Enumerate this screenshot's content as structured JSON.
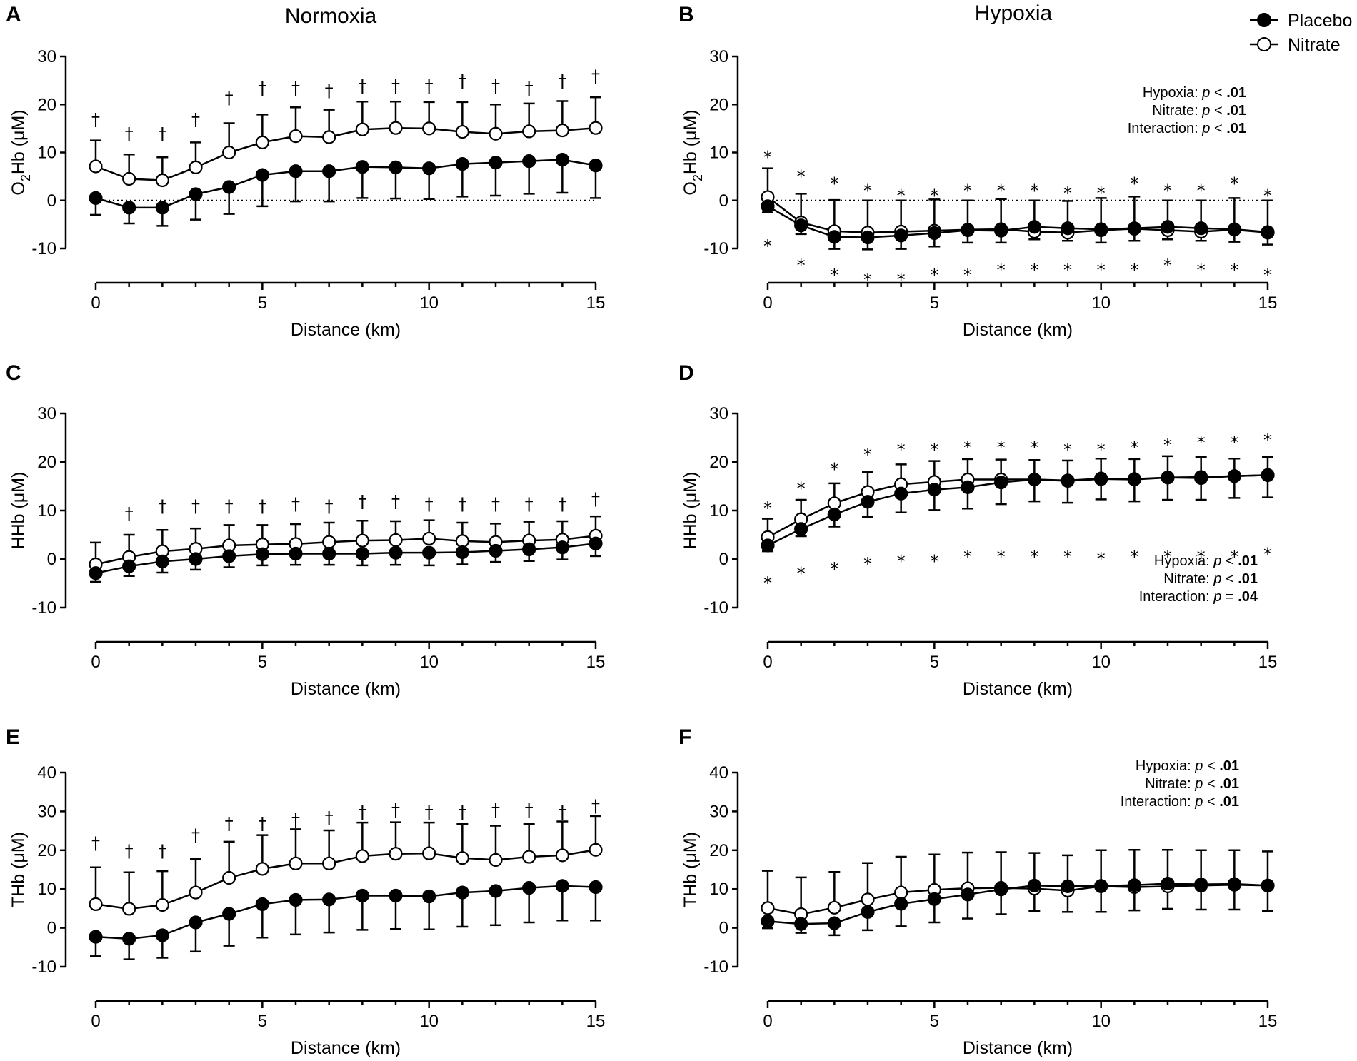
{
  "column_titles": {
    "left": "Normoxia",
    "right": "Hypoxia"
  },
  "legend": {
    "entries": [
      {
        "label": "Placebo",
        "marker": "filled-circle"
      },
      {
        "label": "Nitrate",
        "marker": "open-circle"
      }
    ]
  },
  "colors": {
    "ink": "#000000",
    "background": "#ffffff"
  },
  "chart_data": [
    {
      "id": "A",
      "panel_label": "A",
      "type": "line",
      "xlabel": "Distance (km)",
      "ylabel_main": "O",
      "ylabel_sub": "2",
      "ylabel_rest": "Hb (μM)",
      "xlim": [
        0,
        15
      ],
      "ylim": [
        -10,
        30
      ],
      "xticks": [
        0,
        5,
        10,
        15
      ],
      "yticks": [
        -10,
        0,
        10,
        20,
        30
      ],
      "zero_line": true,
      "x": [
        0,
        1,
        2,
        3,
        4,
        5,
        6,
        7,
        8,
        9,
        10,
        11,
        12,
        13,
        14,
        15
      ],
      "series": [
        {
          "name": "Placebo",
          "filled": true,
          "values": [
            0.5,
            -1.5,
            -1.5,
            1.3,
            2.8,
            5.3,
            6.1,
            6.1,
            7.0,
            6.9,
            6.7,
            7.6,
            7.9,
            8.2,
            8.5,
            7.3
          ],
          "error": [
            3.5,
            3.3,
            3.8,
            5.3,
            5.6,
            6.5,
            6.3,
            6.3,
            6.5,
            6.5,
            6.4,
            6.8,
            6.9,
            6.8,
            6.9,
            6.8
          ]
        },
        {
          "name": "Nitrate",
          "filled": false,
          "values": [
            7.1,
            4.5,
            4.2,
            6.9,
            10.0,
            12.1,
            13.4,
            13.2,
            14.8,
            15.1,
            15.0,
            14.3,
            13.9,
            14.4,
            14.6,
            15.1
          ],
          "error": [
            5.4,
            5.1,
            4.8,
            5.2,
            6.1,
            5.8,
            6.0,
            5.7,
            5.8,
            5.5,
            5.5,
            6.2,
            6.1,
            5.8,
            6.1,
            6.4
          ]
        }
      ],
      "annotations": [
        {
          "symbol": "†",
          "x": [
            0,
            1,
            2,
            3,
            4,
            5,
            6,
            7,
            8,
            9,
            10,
            11,
            12,
            13,
            14,
            15
          ],
          "y": [
            17,
            14,
            14,
            17,
            21.5,
            23.5,
            23.5,
            23,
            24,
            24,
            24,
            25,
            24,
            23.5,
            25,
            26
          ]
        }
      ],
      "stats": []
    },
    {
      "id": "B",
      "panel_label": "B",
      "type": "line",
      "xlabel": "Distance (km)",
      "ylabel_main": "O",
      "ylabel_sub": "2",
      "ylabel_rest": "Hb (μM)",
      "xlim": [
        0,
        15
      ],
      "ylim": [
        -10,
        30
      ],
      "xticks": [
        0,
        5,
        10,
        15
      ],
      "yticks": [
        -10,
        0,
        10,
        20,
        30
      ],
      "zero_line": true,
      "x": [
        0,
        1,
        2,
        3,
        4,
        5,
        6,
        7,
        8,
        9,
        10,
        11,
        12,
        13,
        14,
        15
      ],
      "series": [
        {
          "name": "Placebo",
          "filled": true,
          "values": [
            -1.2,
            -5.2,
            -7.6,
            -7.7,
            -7.3,
            -6.8,
            -6.2,
            -6.3,
            -5.5,
            -5.8,
            -6.0,
            -5.8,
            -5.5,
            -5.8,
            -6.0,
            -6.6
          ],
          "error": [
            1.3,
            1.8,
            2.5,
            2.5,
            2.8,
            2.8,
            2.6,
            2.5,
            2.6,
            2.6,
            2.8,
            2.6,
            2.6,
            2.6,
            2.6,
            2.6
          ]
        },
        {
          "name": "Nitrate",
          "filled": false,
          "values": [
            0.7,
            -4.6,
            -6.4,
            -6.7,
            -6.5,
            -6.3,
            -6.1,
            -6.0,
            -6.5,
            -6.7,
            -6.2,
            -5.9,
            -6.2,
            -6.5,
            -6.1,
            -6.7
          ],
          "error": [
            6.0,
            6.0,
            6.5,
            6.7,
            6.5,
            6.5,
            6.1,
            6.3,
            6.5,
            6.6,
            6.7,
            6.7,
            6.2,
            6.5,
            6.6,
            6.7
          ]
        }
      ],
      "annotations": [
        {
          "symbol": "*",
          "x": [
            0,
            1,
            2,
            3,
            4,
            5,
            6,
            7,
            8,
            9,
            10,
            11,
            12,
            13,
            14,
            15
          ],
          "y": [
            10,
            6,
            4.5,
            3,
            2,
            2,
            3,
            3,
            3,
            2.5,
            2.5,
            4.5,
            3,
            3,
            4.5,
            2
          ]
        },
        {
          "symbol": "*",
          "x": [
            0,
            1,
            2,
            3,
            4,
            5,
            6,
            7,
            8,
            9,
            10,
            11,
            12,
            13,
            14,
            15
          ],
          "y": [
            -8.5,
            -12.5,
            -14.5,
            -15.5,
            -15.5,
            -14.5,
            -14.5,
            -13.5,
            -13.5,
            -13.5,
            -13.5,
            -13.5,
            -12.5,
            -13.5,
            -13.5,
            -14.5
          ]
        }
      ],
      "stats": [
        {
          "label": "Hypoxia: ",
          "p": "p",
          "op": " < ",
          "value": ".01"
        },
        {
          "label": "Nitrate: ",
          "p": "p",
          "op": " < ",
          "value": ".01"
        },
        {
          "label": "Interaction: ",
          "p": "p",
          "op": " < ",
          "value": ".01"
        }
      ]
    },
    {
      "id": "C",
      "panel_label": "C",
      "type": "line",
      "xlabel": "Distance (km)",
      "ylabel_main": "HHb (μM)",
      "ylabel_sub": "",
      "ylabel_rest": "",
      "xlim": [
        0,
        15
      ],
      "ylim": [
        -10,
        30
      ],
      "xticks": [
        0,
        5,
        10,
        15
      ],
      "yticks": [
        -10,
        0,
        10,
        20,
        30
      ],
      "zero_line": false,
      "x": [
        0,
        1,
        2,
        3,
        4,
        5,
        6,
        7,
        8,
        9,
        10,
        11,
        12,
        13,
        14,
        15
      ],
      "series": [
        {
          "name": "Placebo",
          "filled": true,
          "values": [
            -2.9,
            -1.5,
            -0.5,
            0.0,
            0.6,
            1.0,
            1.1,
            1.1,
            1.1,
            1.3,
            1.3,
            1.4,
            1.7,
            2.0,
            2.4,
            3.2
          ],
          "error": [
            1.8,
            2.0,
            2.3,
            2.2,
            2.3,
            2.3,
            2.3,
            2.3,
            2.4,
            2.5,
            2.6,
            2.5,
            2.3,
            2.4,
            2.5,
            2.6
          ]
        },
        {
          "name": "Nitrate",
          "filled": false,
          "values": [
            -1.1,
            0.4,
            1.6,
            2.1,
            2.8,
            3.0,
            3.1,
            3.5,
            3.8,
            3.9,
            4.2,
            3.7,
            3.5,
            3.8,
            4.0,
            4.8
          ],
          "error": [
            4.5,
            4.6,
            4.4,
            4.2,
            4.2,
            4.0,
            4.1,
            4.0,
            4.1,
            3.9,
            3.8,
            3.8,
            3.8,
            3.9,
            3.8,
            4.0
          ]
        }
      ],
      "annotations": [
        {
          "symbol": "†",
          "x": [
            1,
            2,
            3,
            4,
            5,
            6,
            7,
            8,
            9,
            10,
            11,
            12,
            13,
            14,
            15
          ],
          "y": [
            9.5,
            11,
            11,
            11,
            11,
            11.5,
            11,
            12,
            12,
            11.5,
            11.5,
            11.5,
            11.5,
            11.5,
            12.5
          ]
        }
      ],
      "stats": []
    },
    {
      "id": "D",
      "panel_label": "D",
      "type": "line",
      "xlabel": "Distance (km)",
      "ylabel_main": "HHb (μM)",
      "ylabel_sub": "",
      "ylabel_rest": "",
      "xlim": [
        0,
        15
      ],
      "ylim": [
        -10,
        30
      ],
      "xticks": [
        0,
        5,
        10,
        15
      ],
      "yticks": [
        -10,
        0,
        10,
        20,
        30
      ],
      "zero_line": false,
      "x": [
        0,
        1,
        2,
        3,
        4,
        5,
        6,
        7,
        8,
        9,
        10,
        11,
        12,
        13,
        14,
        15
      ],
      "series": [
        {
          "name": "Placebo",
          "filled": true,
          "values": [
            2.8,
            6.2,
            9.2,
            11.8,
            13.5,
            14.3,
            14.8,
            15.8,
            16.4,
            16.2,
            16.6,
            16.5,
            16.8,
            16.9,
            17.1,
            17.3
          ],
          "error": [
            1.2,
            1.5,
            2.5,
            3.1,
            3.9,
            4.2,
            4.4,
            4.5,
            4.5,
            4.6,
            4.3,
            4.6,
            4.6,
            4.7,
            4.5,
            4.6
          ]
        },
        {
          "name": "Nitrate",
          "filled": false,
          "values": [
            4.5,
            8.2,
            11.5,
            13.8,
            15.4,
            15.9,
            16.4,
            16.4,
            16.4,
            16.1,
            16.5,
            16.4,
            16.8,
            16.7,
            17.1,
            17.3
          ],
          "error": [
            3.8,
            4.0,
            4.1,
            4.1,
            4.1,
            4.3,
            4.2,
            4.1,
            4.0,
            4.2,
            4.2,
            4.2,
            4.4,
            4.3,
            3.6,
            3.7
          ]
        }
      ],
      "annotations": [
        {
          "symbol": "*",
          "x": [
            0,
            1,
            2,
            3,
            4,
            5,
            6,
            7,
            8,
            9,
            10,
            11,
            12,
            13,
            14,
            15
          ],
          "y": [
            11.5,
            15.5,
            19.5,
            22.5,
            23.5,
            23.5,
            24,
            24,
            24,
            23.5,
            23.5,
            24,
            24.5,
            25,
            25,
            25.5
          ]
        },
        {
          "symbol": "*",
          "x": [
            0,
            1,
            2,
            3,
            4,
            5,
            6,
            7,
            8,
            9,
            10,
            11,
            12,
            13,
            14,
            15
          ],
          "y": [
            -4,
            -2,
            -1,
            0,
            0.5,
            0.5,
            1.5,
            1.5,
            1.5,
            1.5,
            1,
            1.5,
            1.5,
            1.5,
            1.5,
            2
          ]
        }
      ],
      "stats": [
        {
          "label": "Hypoxia: ",
          "p": "p",
          "op": " < ",
          "value": ".01"
        },
        {
          "label": "Nitrate: ",
          "p": "p",
          "op": " < ",
          "value": ".01"
        },
        {
          "label": "Interaction: ",
          "p": "p",
          "op": " = ",
          "value": ".04"
        }
      ]
    },
    {
      "id": "E",
      "panel_label": "E",
      "type": "line",
      "xlabel": "Distance (km)",
      "ylabel_main": "THb (μM)",
      "ylabel_sub": "",
      "ylabel_rest": "",
      "xlim": [
        0,
        15
      ],
      "ylim": [
        -10,
        40
      ],
      "xticks": [
        0,
        5,
        10,
        15
      ],
      "yticks": [
        -10,
        0,
        10,
        20,
        30,
        40
      ],
      "zero_line": false,
      "x": [
        0,
        1,
        2,
        3,
        4,
        5,
        6,
        7,
        8,
        9,
        10,
        11,
        12,
        13,
        14,
        15
      ],
      "series": [
        {
          "name": "Placebo",
          "filled": true,
          "values": [
            -2.3,
            -2.8,
            -1.9,
            1.4,
            3.6,
            6.1,
            7.2,
            7.3,
            8.3,
            8.3,
            8.1,
            9.1,
            9.5,
            10.3,
            10.8,
            10.5
          ],
          "error": [
            5.0,
            5.3,
            5.8,
            7.5,
            8.2,
            8.6,
            8.9,
            8.5,
            8.8,
            8.6,
            8.5,
            8.8,
            8.8,
            8.9,
            8.9,
            8.6
          ]
        },
        {
          "name": "Nitrate",
          "filled": false,
          "values": [
            6.1,
            4.9,
            5.9,
            9.1,
            12.9,
            15.2,
            16.6,
            16.6,
            18.5,
            19.1,
            19.2,
            18.0,
            17.5,
            18.3,
            18.7,
            20.1
          ],
          "error": [
            9.5,
            9.4,
            8.7,
            8.7,
            9.3,
            8.7,
            8.8,
            8.5,
            8.6,
            8.1,
            7.9,
            8.8,
            8.8,
            8.5,
            8.7,
            8.7
          ]
        }
      ],
      "annotations": [
        {
          "symbol": "†",
          "x": [
            0,
            1,
            2,
            3,
            4,
            5,
            6,
            7,
            8,
            9,
            10,
            11,
            12,
            13,
            14,
            15
          ],
          "y": [
            22,
            20,
            20,
            24,
            27,
            27,
            28,
            28.5,
            30,
            30.5,
            30,
            30,
            30.5,
            30.5,
            30,
            31.5
          ]
        }
      ],
      "stats": []
    },
    {
      "id": "F",
      "panel_label": "F",
      "type": "line",
      "xlabel": "Distance (km)",
      "ylabel_main": "THb (μM)",
      "ylabel_sub": "",
      "ylabel_rest": "",
      "xlim": [
        0,
        15
      ],
      "ylim": [
        -10,
        40
      ],
      "xticks": [
        0,
        5,
        10,
        15
      ],
      "yticks": [
        -10,
        0,
        10,
        20,
        30,
        40
      ],
      "zero_line": false,
      "x": [
        0,
        1,
        2,
        3,
        4,
        5,
        6,
        7,
        8,
        9,
        10,
        11,
        12,
        13,
        14,
        15
      ],
      "series": [
        {
          "name": "Placebo",
          "filled": true,
          "values": [
            1.7,
            1.0,
            1.2,
            4.1,
            6.2,
            7.4,
            8.6,
            9.9,
            10.9,
            10.7,
            10.8,
            11.0,
            11.4,
            11.2,
            11.3,
            10.9
          ],
          "error": [
            1.8,
            2.3,
            3.1,
            4.7,
            5.8,
            6.0,
            6.2,
            6.4,
            6.6,
            6.6,
            6.7,
            6.5,
            6.5,
            6.5,
            6.6,
            6.6
          ]
        },
        {
          "name": "Nitrate",
          "filled": false,
          "values": [
            5.1,
            3.5,
            5.2,
            7.3,
            9.1,
            9.8,
            10.2,
            10.3,
            10.1,
            9.6,
            10.7,
            10.5,
            10.7,
            10.9,
            11.1,
            10.9
          ],
          "error": [
            9.6,
            9.5,
            9.2,
            9.4,
            9.2,
            9.1,
            9.2,
            9.2,
            9.2,
            9.1,
            9.3,
            9.6,
            9.4,
            9.1,
            8.9,
            8.8
          ]
        }
      ],
      "annotations": [],
      "stats": [
        {
          "label": "Hypoxia: ",
          "p": "p",
          "op": " < ",
          "value": ".01"
        },
        {
          "label": "Nitrate: ",
          "p": "p",
          "op": " < ",
          "value": ".01"
        },
        {
          "label": "Interaction: ",
          "p": "p",
          "op": " < ",
          "value": ".01"
        }
      ]
    }
  ]
}
